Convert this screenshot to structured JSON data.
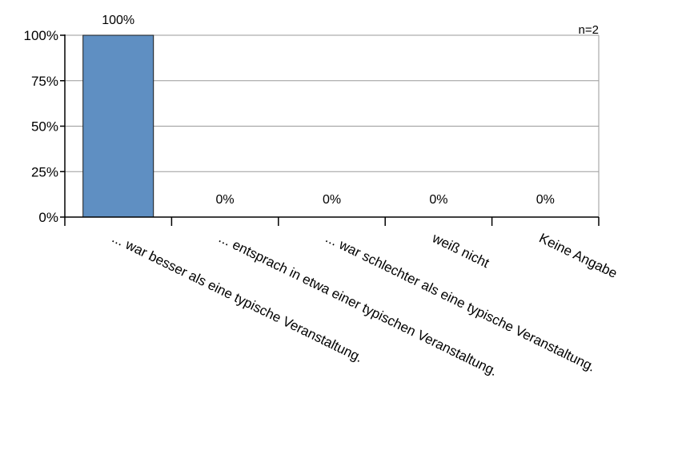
{
  "chart_data": {
    "type": "bar",
    "categories": [
      "... war besser als eine typische Veranstaltung.",
      "... entsprach in etwa einer typischen Veranstaltung.",
      "... war schlechter als eine typische Veranstaltung.",
      "weiß nicht",
      "Keine Angabe"
    ],
    "values": [
      100,
      0,
      0,
      0,
      0
    ],
    "data_labels": [
      "100%",
      "0%",
      "0%",
      "0%",
      "0%"
    ],
    "y_ticks": [
      "0%",
      "25%",
      "50%",
      "75%",
      "100%"
    ],
    "ylim": [
      0,
      100
    ],
    "grid": true,
    "annotation": "n=2",
    "colors": {
      "bar": "#5f8fc2",
      "bar_border": "#1a1a1a",
      "grid": "#9a9a9a",
      "axis": "#000000"
    }
  }
}
